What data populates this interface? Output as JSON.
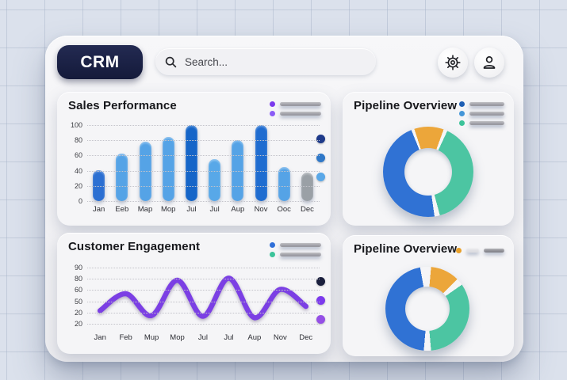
{
  "app": {
    "logo": "CRM"
  },
  "topbar": {
    "search_placeholder": "Search...",
    "icons": [
      "search-icon",
      "gear-icon",
      "user-icon"
    ]
  },
  "cards": [
    {
      "title": "Sales Performance",
      "header_legend_dots": [
        "#7b3aed",
        "#8b5cf6"
      ],
      "side_dots": [
        "#1e3a8a",
        "#2f78c8",
        "#5aa8e8"
      ]
    },
    {
      "title": "Pipeline Overview",
      "header_legend_dots": [
        "#1e5fb4",
        "#4596d8",
        "#3cc39a"
      ]
    },
    {
      "title": "Customer Engagement",
      "header_legend_dots": [
        "#2f6fd8",
        "#3cc39a"
      ],
      "side_dots": [
        "#1a1f3d",
        "#7c3aed",
        "#9550e6"
      ]
    },
    {
      "title": "Pipeline Overview",
      "header_legend_dot": "#e8a02a"
    }
  ],
  "chart_data": [
    {
      "type": "bar",
      "title": "Sales Performance",
      "categories": [
        "Jan",
        "Eeb",
        "Map",
        "Mop",
        "Jul",
        "Jul",
        "Aup",
        "Nov",
        "Ooc",
        "Dec"
      ],
      "values": [
        41,
        63,
        78,
        84,
        100,
        55,
        80,
        100,
        45,
        38
      ],
      "bar_colors": [
        "#2b6fd2",
        "#55a3e6",
        "#55a3e6",
        "#55a3e6",
        "#1565c8",
        "#58a8e8",
        "#55a3e6",
        "#1f6cd0",
        "#55a3e6",
        "#9aa0a6"
      ],
      "ylabels": [
        "100",
        "80",
        "60",
        "40",
        "20",
        "0"
      ],
      "ylim": [
        0,
        100
      ],
      "grid": "dotted-horizontal",
      "legend_position": "top-right"
    },
    {
      "type": "donut",
      "title": "Pipeline Overview",
      "segments": [
        {
          "name": "orange",
          "color": "#eca63a",
          "approx_percent": 11
        },
        {
          "name": "teal",
          "color": "#4cc5a2",
          "approx_percent": 40
        },
        {
          "name": "blue",
          "color": "#3072d4",
          "approx_percent": 46
        }
      ],
      "conic_stops": [
        [
          "#eca63a",
          0,
          20
        ],
        [
          "BG",
          20,
          25
        ],
        [
          "#4cc5a2",
          25,
          165
        ],
        [
          "BG",
          165,
          172
        ],
        [
          "#3072d4",
          172,
          338
        ],
        [
          "BG",
          338,
          342
        ],
        [
          "#eca63a",
          342,
          360
        ]
      ],
      "legend_position": "top-right"
    },
    {
      "type": "line",
      "title": "Customer Engagement",
      "categories": [
        "Jan",
        "Feb",
        "Mup",
        "Mop",
        "Jul",
        "Jul",
        "Aup",
        "Nov",
        "Dec"
      ],
      "values": [
        28,
        52,
        21,
        71,
        20,
        74,
        18,
        58,
        34
      ],
      "ylabels": [
        "90",
        "80",
        "60",
        "50",
        "20",
        "20"
      ],
      "line_color": "#7b3fe4",
      "grid": "dotted-horizontal",
      "legend_position": "top-right"
    },
    {
      "type": "donut",
      "title": "Pipeline Overview",
      "segments": [
        {
          "name": "orange",
          "color": "#eca63a",
          "approx_percent": 11
        },
        {
          "name": "teal",
          "color": "#4cc5a2",
          "approx_percent": 33
        },
        {
          "name": "blue",
          "color": "#3072d4",
          "approx_percent": 46
        }
      ],
      "conic_stops": [
        [
          "BG",
          0,
          5
        ],
        [
          "#eca63a",
          5,
          45
        ],
        [
          "BG",
          45,
          55
        ],
        [
          "#4cc5a2",
          55,
          175
        ],
        [
          "BG",
          175,
          185
        ],
        [
          "#3072d4",
          185,
          350
        ],
        [
          "BG",
          350,
          360
        ]
      ],
      "legend_position": "top-right"
    }
  ]
}
